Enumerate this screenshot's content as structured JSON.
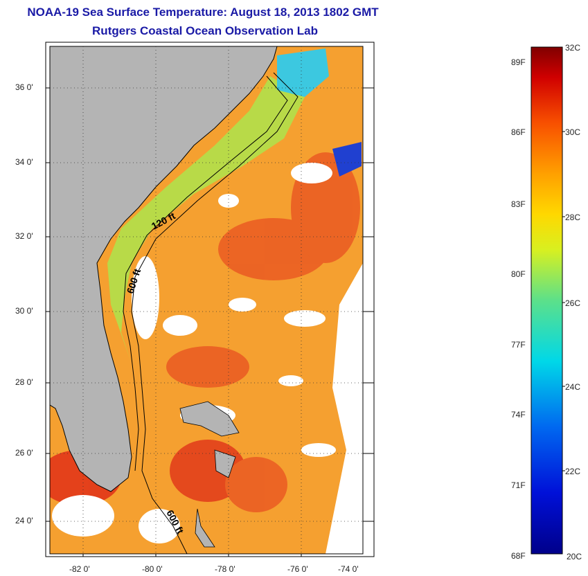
{
  "title": {
    "line1": "NOAA-19 Sea Surface Temperature:  August 18, 2013 1802 GMT",
    "line2": "Rutgers Coastal Ocean Observation Lab"
  },
  "map": {
    "lat_labels": [
      "36 0'",
      "34 0'",
      "32 0'",
      "30 0'",
      "28 0'",
      "26 0'",
      "24 0'"
    ],
    "lon_labels": [
      "-82 0'",
      "-80 0'",
      "-78 0'",
      "-76 0'",
      "-74 0'"
    ],
    "contour_labels": [
      "120 ft",
      "600 ft",
      "600 ft"
    ],
    "colors": {
      "land": "#b4b4b4",
      "clouds": "#ffffff",
      "warm_offshore": "#f39c2a",
      "hot": "#e8401f",
      "coastal_green": "#a9d84a",
      "cool_cyan": "#2cc8e0",
      "cold_blue": "#1a2fd0"
    }
  },
  "colorbar": {
    "fahrenheit_labels": [
      "89F",
      "86F",
      "83F",
      "80F",
      "77F",
      "74F",
      "71F",
      "68F"
    ],
    "celsius_labels": [
      "32C",
      "30C",
      "28C",
      "26C",
      "24C",
      "22C",
      "20C"
    ],
    "range_c": [
      20,
      32
    ]
  }
}
